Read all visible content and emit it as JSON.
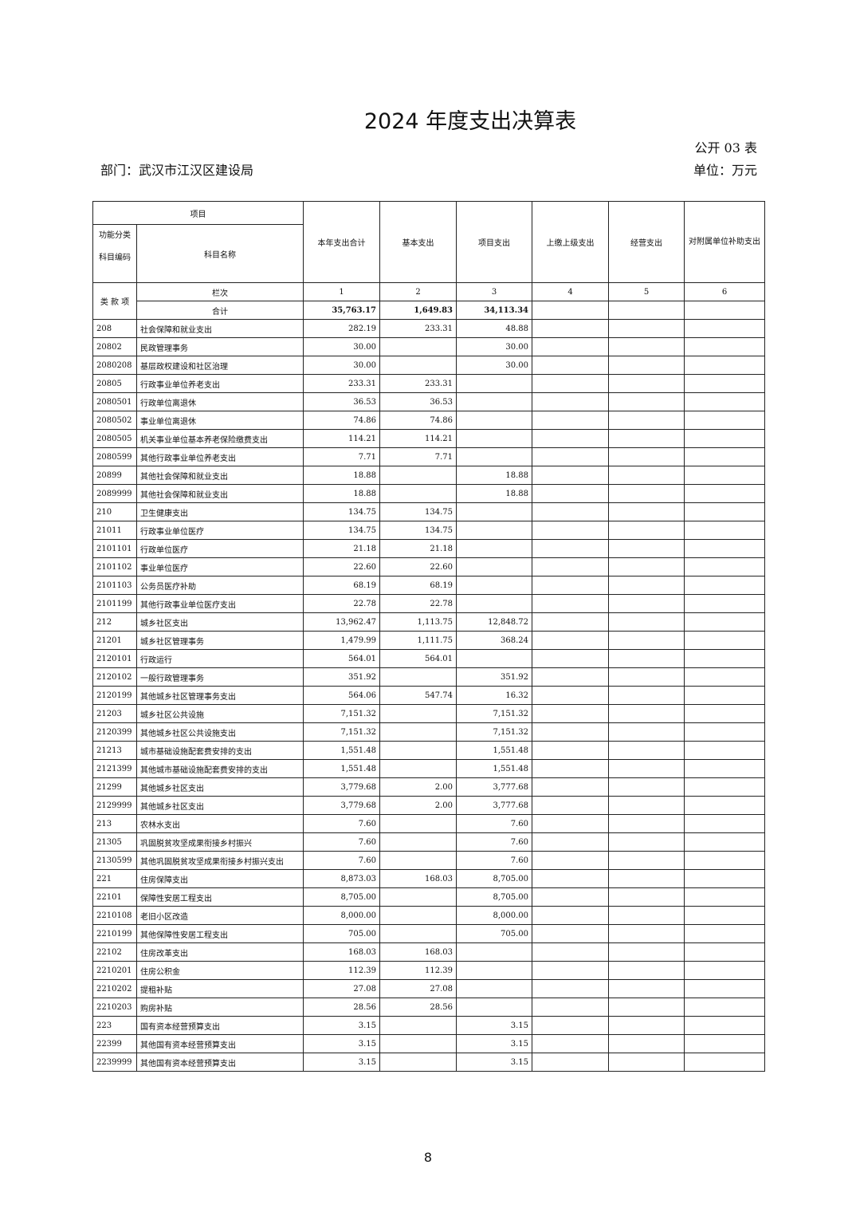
{
  "title": "2024 年度支出决算表",
  "form_no": "公开 03 表",
  "department": "部门：武汉市江汉区建设局",
  "unit": "单位：万元",
  "header": {
    "item": "项目",
    "code": "功能分类科目编码",
    "name": "科目名称",
    "cols": [
      "本年支出合计",
      "基本支出",
      "项目支出",
      "上缴上级支出",
      "经营支出",
      "对附属单位补助支出"
    ],
    "col_index_label": "栏次",
    "col_indexes": [
      "1",
      "2",
      "3",
      "4",
      "5",
      "6"
    ],
    "level_labels": "类 款 项",
    "total_label": "合计",
    "totals": [
      "35,763.17",
      "1,649.83",
      "34,113.34",
      "",
      "",
      ""
    ]
  },
  "rows": [
    [
      "208",
      "社会保障和就业支出",
      "282.19",
      "233.31",
      "48.88"
    ],
    [
      "20802",
      "民政管理事务",
      "30.00",
      "",
      "30.00"
    ],
    [
      "2080208",
      "基层政权建设和社区治理",
      "30.00",
      "",
      "30.00"
    ],
    [
      "20805",
      "行政事业单位养老支出",
      "233.31",
      "233.31",
      ""
    ],
    [
      "2080501",
      "行政单位离退休",
      "36.53",
      "36.53",
      ""
    ],
    [
      "2080502",
      "事业单位离退休",
      "74.86",
      "74.86",
      ""
    ],
    [
      "2080505",
      "机关事业单位基本养老保险缴费支出",
      "114.21",
      "114.21",
      ""
    ],
    [
      "2080599",
      "其他行政事业单位养老支出",
      "7.71",
      "7.71",
      ""
    ],
    [
      "20899",
      "其他社会保障和就业支出",
      "18.88",
      "",
      "18.88"
    ],
    [
      "2089999",
      "其他社会保障和就业支出",
      "18.88",
      "",
      "18.88"
    ],
    [
      "210",
      "卫生健康支出",
      "134.75",
      "134.75",
      ""
    ],
    [
      "21011",
      "行政事业单位医疗",
      "134.75",
      "134.75",
      ""
    ],
    [
      "2101101",
      "行政单位医疗",
      "21.18",
      "21.18",
      ""
    ],
    [
      "2101102",
      "事业单位医疗",
      "22.60",
      "22.60",
      ""
    ],
    [
      "2101103",
      "公务员医疗补助",
      "68.19",
      "68.19",
      ""
    ],
    [
      "2101199",
      "其他行政事业单位医疗支出",
      "22.78",
      "22.78",
      ""
    ],
    [
      "212",
      "城乡社区支出",
      "13,962.47",
      "1,113.75",
      "12,848.72"
    ],
    [
      "21201",
      "城乡社区管理事务",
      "1,479.99",
      "1,111.75",
      "368.24"
    ],
    [
      "2120101",
      "行政运行",
      "564.01",
      "564.01",
      ""
    ],
    [
      "2120102",
      "一般行政管理事务",
      "351.92",
      "",
      "351.92"
    ],
    [
      "2120199",
      "其他城乡社区管理事务支出",
      "564.06",
      "547.74",
      "16.32"
    ],
    [
      "21203",
      "城乡社区公共设施",
      "7,151.32",
      "",
      "7,151.32"
    ],
    [
      "2120399",
      "其他城乡社区公共设施支出",
      "7,151.32",
      "",
      "7,151.32"
    ],
    [
      "21213",
      "城市基础设施配套费安排的支出",
      "1,551.48",
      "",
      "1,551.48"
    ],
    [
      "2121399",
      "其他城市基础设施配套费安排的支出",
      "1,551.48",
      "",
      "1,551.48"
    ],
    [
      "21299",
      "其他城乡社区支出",
      "3,779.68",
      "2.00",
      "3,777.68"
    ],
    [
      "2129999",
      "其他城乡社区支出",
      "3,779.68",
      "2.00",
      "3,777.68"
    ],
    [
      "213",
      "农林水支出",
      "7.60",
      "",
      "7.60"
    ],
    [
      "21305",
      "巩固脱贫攻坚成果衔接乡村振兴",
      "7.60",
      "",
      "7.60"
    ],
    [
      "2130599",
      "其他巩固脱贫攻坚成果衔接乡村振兴支出",
      "7.60",
      "",
      "7.60"
    ],
    [
      "221",
      "住房保障支出",
      "8,873.03",
      "168.03",
      "8,705.00"
    ],
    [
      "22101",
      "保障性安居工程支出",
      "8,705.00",
      "",
      "8,705.00"
    ],
    [
      "2210108",
      "老旧小区改造",
      "8,000.00",
      "",
      "8,000.00"
    ],
    [
      "2210199",
      "其他保障性安居工程支出",
      "705.00",
      "",
      "705.00"
    ],
    [
      "22102",
      "住房改革支出",
      "168.03",
      "168.03",
      ""
    ],
    [
      "2210201",
      "住房公积金",
      "112.39",
      "112.39",
      ""
    ],
    [
      "2210202",
      "提租补贴",
      "27.08",
      "27.08",
      ""
    ],
    [
      "2210203",
      "购房补贴",
      "28.56",
      "28.56",
      ""
    ],
    [
      "223",
      "国有资本经营预算支出",
      "3.15",
      "",
      "3.15"
    ],
    [
      "22399",
      "其他国有资本经营预算支出",
      "3.15",
      "",
      "3.15"
    ],
    [
      "2239999",
      "其他国有资本经营预算支出",
      "3.15",
      "",
      "3.15"
    ]
  ],
  "page_number": "8"
}
